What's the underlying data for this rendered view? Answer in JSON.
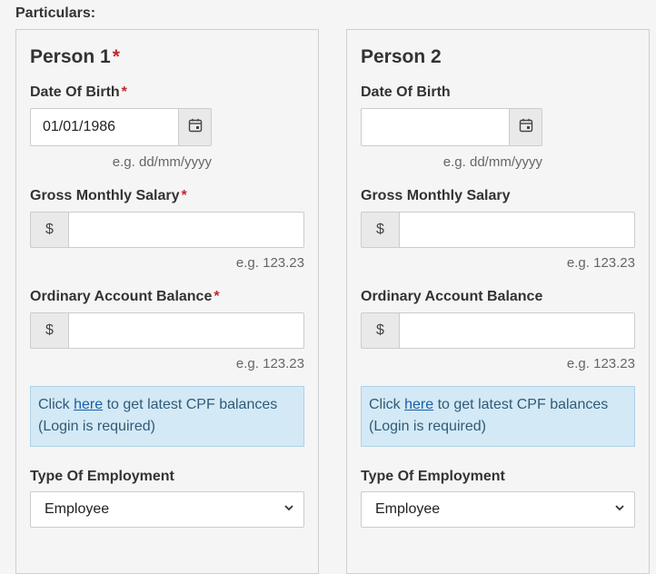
{
  "section": {
    "title": "Particulars:"
  },
  "person1": {
    "title": "Person 1",
    "required_mark": "*",
    "dob": {
      "label": "Date Of Birth",
      "value": "01/01/1986",
      "hint": "e.g. dd/mm/yyyy"
    },
    "salary": {
      "label": "Gross Monthly Salary",
      "prefix": "$",
      "value": "",
      "hint": "e.g. 123.23"
    },
    "oa": {
      "label": "Ordinary Account Balance",
      "prefix": "$",
      "value": "",
      "hint": "e.g. 123.23"
    },
    "info": {
      "prefix": "Click ",
      "link": "here",
      "suffix": " to get latest CPF balances",
      "line2": "(Login is required)"
    },
    "employment": {
      "label": "Type Of Employment",
      "selected": "Employee"
    }
  },
  "person2": {
    "title": "Person 2",
    "dob": {
      "label": "Date Of Birth",
      "value": "",
      "hint": "e.g. dd/mm/yyyy"
    },
    "salary": {
      "label": "Gross Monthly Salary",
      "prefix": "$",
      "value": "",
      "hint": "e.g. 123.23"
    },
    "oa": {
      "label": "Ordinary Account Balance",
      "prefix": "$",
      "value": "",
      "hint": "e.g. 123.23"
    },
    "info": {
      "prefix": "Click ",
      "link": "here",
      "suffix": " to get latest CPF balances",
      "line2": "(Login is required)"
    },
    "employment": {
      "label": "Type Of Employment",
      "selected": "Employee"
    }
  },
  "colors": {
    "required": "#c0282d",
    "info_bg": "#d3e9f5",
    "link": "#1a5fa8"
  },
  "icons": {
    "calendar": "calendar-icon",
    "dropdown": "chevron-down-icon"
  }
}
